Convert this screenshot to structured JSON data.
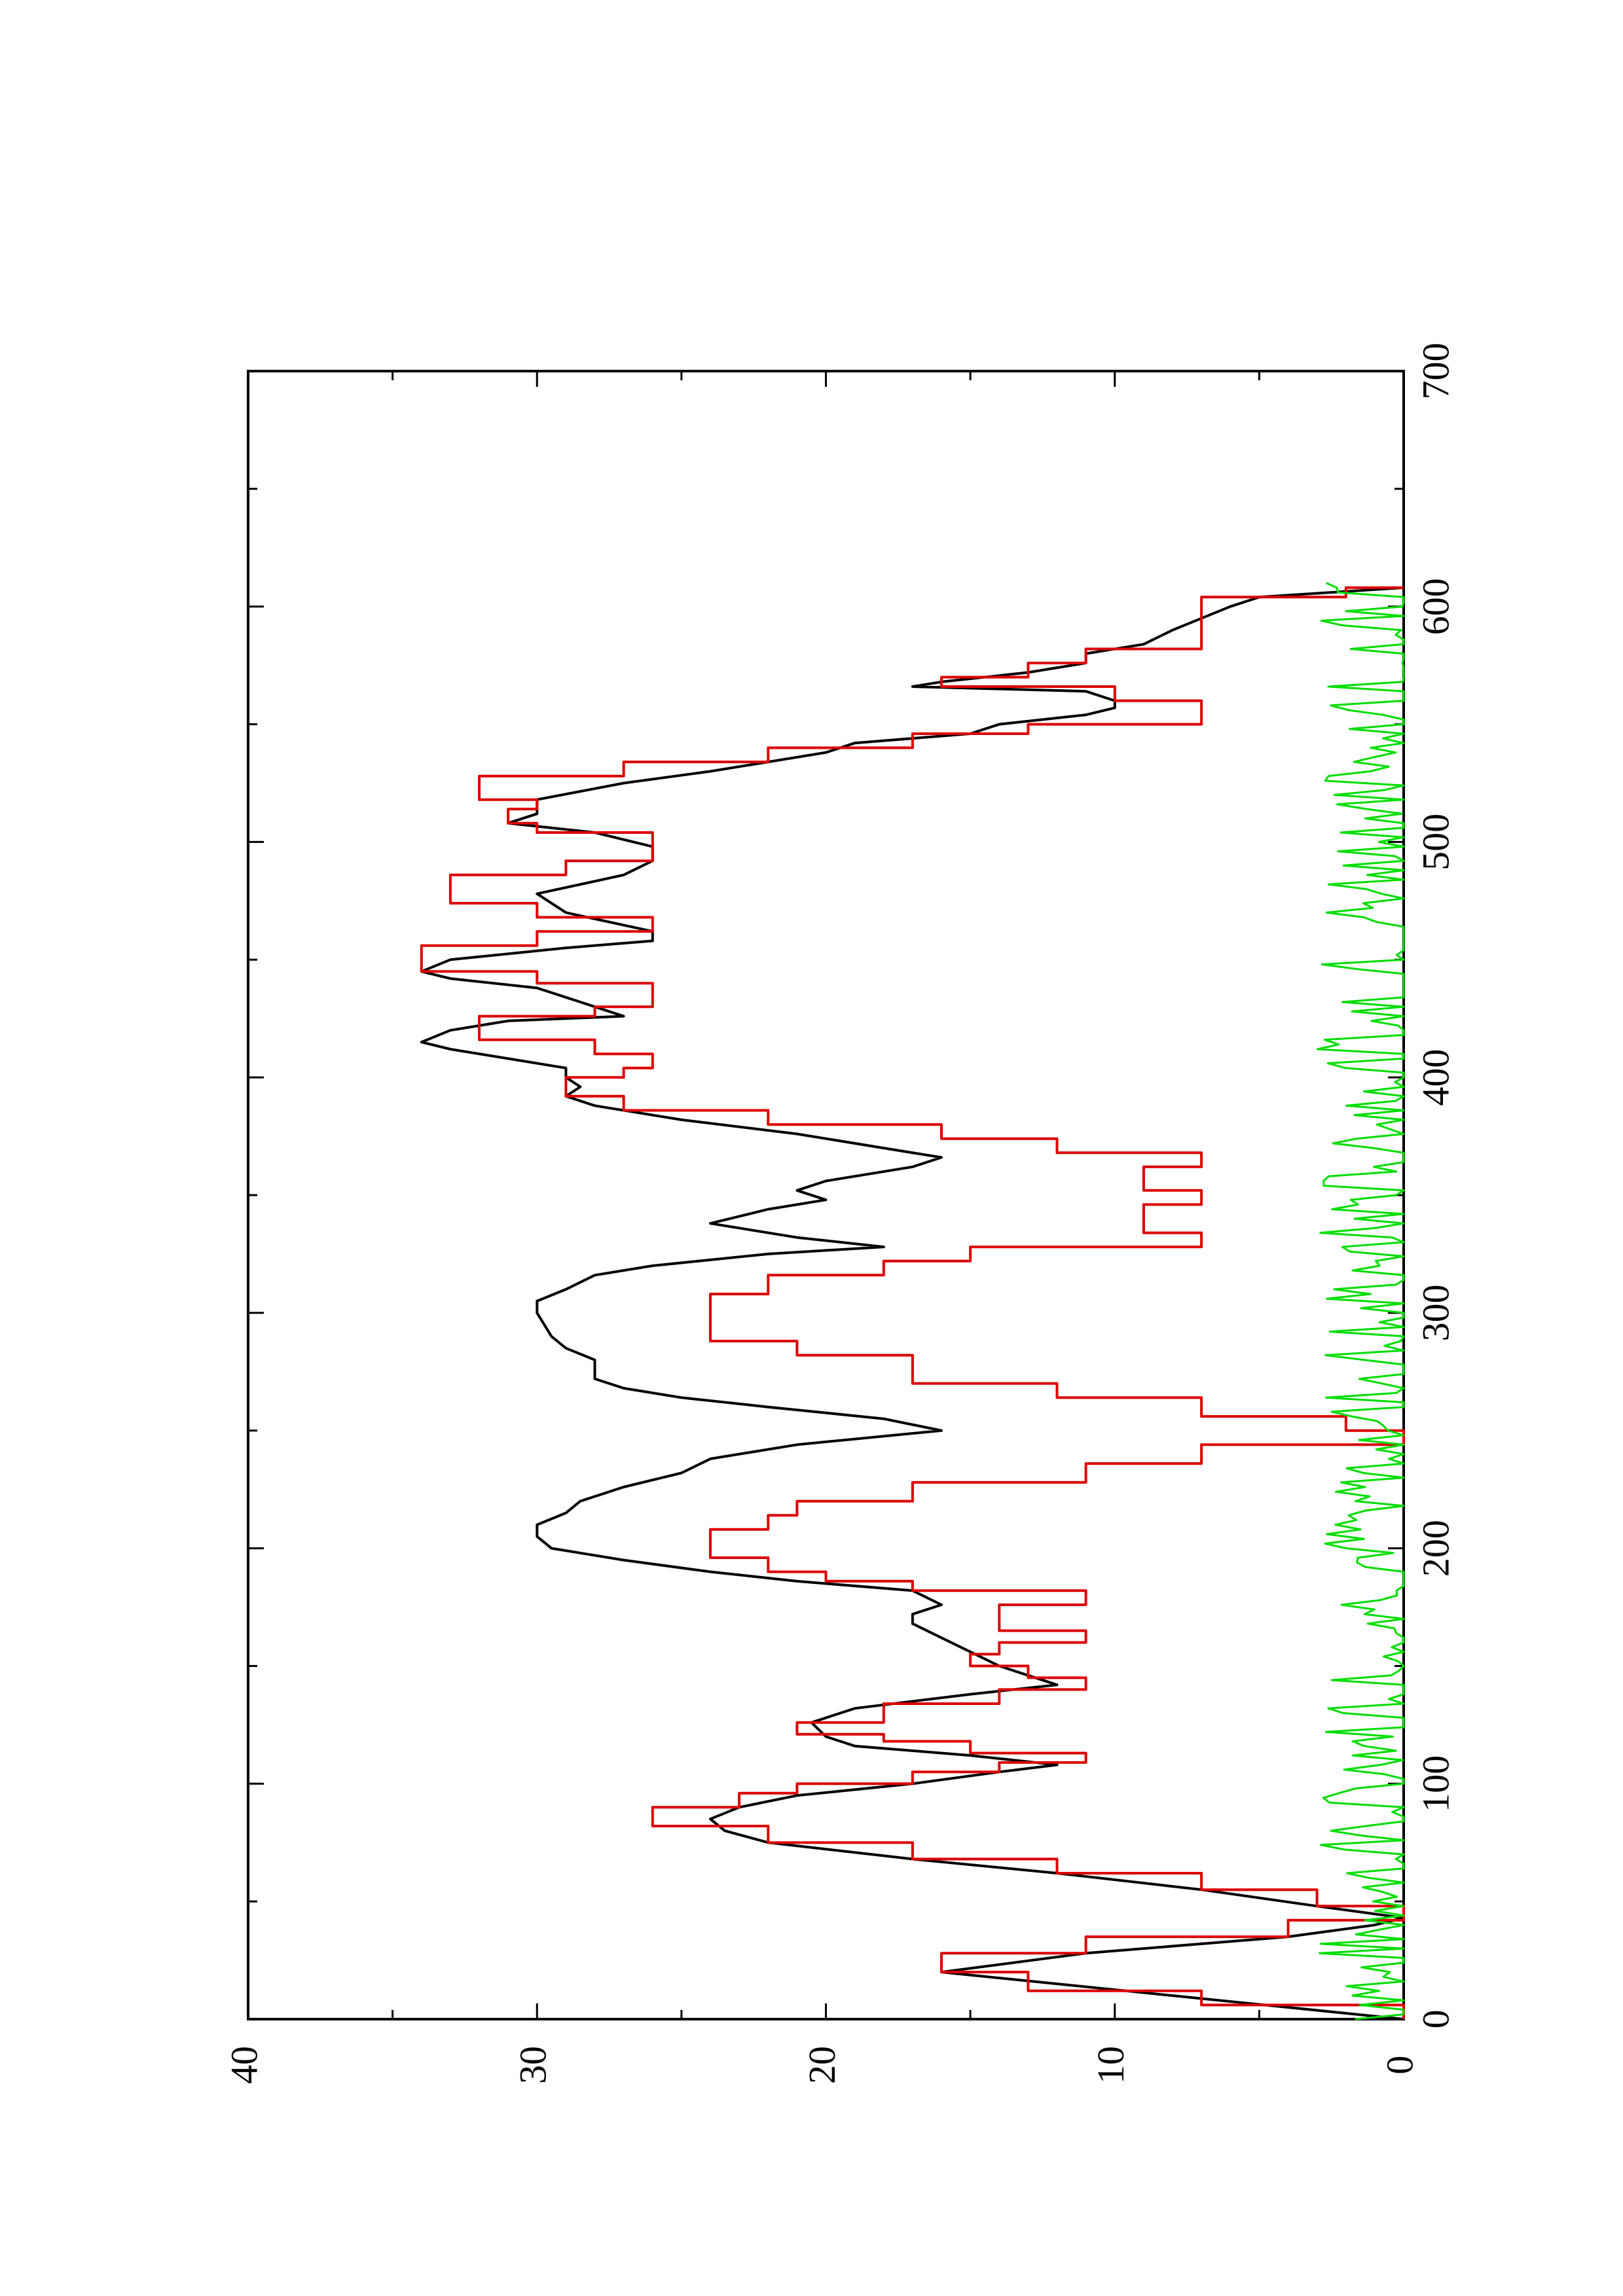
{
  "chart_data": {
    "type": "line",
    "orientation": "rotated-90-clockwise",
    "title": "",
    "xlabel": "",
    "ylabel": "",
    "xlim": [
      0,
      700
    ],
    "ylim": [
      0,
      40
    ],
    "x_major_ticks": [
      0,
      100,
      200,
      300,
      400,
      500,
      600,
      700
    ],
    "x_minor_ticks": [
      50,
      150,
      250,
      350,
      450,
      550,
      650
    ],
    "y_major_ticks": [
      0,
      10,
      20,
      30,
      40
    ],
    "y_minor_ticks": [
      5,
      15,
      25,
      35
    ],
    "x_tick_labels": [
      "0",
      "100",
      "200",
      "300",
      "400",
      "500",
      "600",
      "700"
    ],
    "y_tick_labels": [
      "0",
      "10",
      "20",
      "30",
      "40"
    ],
    "grid": false,
    "legend": "none",
    "series": [
      {
        "color": "#000000",
        "style": "line",
        "points": [
          [
            0,
            0
          ],
          [
            20,
            16
          ],
          [
            28,
            11
          ],
          [
            35,
            4
          ],
          [
            40,
            1
          ],
          [
            43,
            0
          ],
          [
            48,
            3
          ],
          [
            55,
            7
          ],
          [
            62,
            12
          ],
          [
            68,
            17
          ],
          [
            75,
            22
          ],
          [
            80,
            23.5
          ],
          [
            85,
            24
          ],
          [
            90,
            23
          ],
          [
            95,
            21
          ],
          [
            100,
            17
          ],
          [
            105,
            14
          ],
          [
            108,
            12
          ],
          [
            112,
            15
          ],
          [
            116,
            19
          ],
          [
            120,
            20
          ],
          [
            126,
            20.5
          ],
          [
            132,
            19
          ],
          [
            138,
            15
          ],
          [
            142,
            12
          ],
          [
            146,
            13
          ],
          [
            150,
            14
          ],
          [
            156,
            15
          ],
          [
            162,
            16
          ],
          [
            168,
            17
          ],
          [
            172,
            17
          ],
          [
            176,
            16
          ],
          [
            182,
            17
          ],
          [
            186,
            21
          ],
          [
            190,
            24
          ],
          [
            195,
            27
          ],
          [
            200,
            29.5
          ],
          [
            205,
            30
          ],
          [
            210,
            30
          ],
          [
            215,
            29
          ],
          [
            220,
            28.5
          ],
          [
            226,
            27
          ],
          [
            232,
            25
          ],
          [
            238,
            24
          ],
          [
            244,
            21
          ],
          [
            250,
            16
          ],
          [
            255,
            18
          ],
          [
            260,
            22
          ],
          [
            264,
            25
          ],
          [
            268,
            27
          ],
          [
            272,
            28
          ],
          [
            280,
            28
          ],
          [
            285,
            29
          ],
          [
            290,
            29.5
          ],
          [
            300,
            30
          ],
          [
            305,
            30
          ],
          [
            310,
            29
          ],
          [
            316,
            28
          ],
          [
            320,
            26
          ],
          [
            325,
            22
          ],
          [
            328,
            18
          ],
          [
            332,
            21
          ],
          [
            338,
            24
          ],
          [
            344,
            22
          ],
          [
            348,
            20
          ],
          [
            352,
            21
          ],
          [
            356,
            20
          ],
          [
            362,
            17
          ],
          [
            366,
            16
          ],
          [
            370,
            18
          ],
          [
            376,
            21
          ],
          [
            382,
            25
          ],
          [
            388,
            28
          ],
          [
            392,
            29
          ],
          [
            396,
            28.5
          ],
          [
            400,
            29
          ],
          [
            404,
            29
          ],
          [
            408,
            31
          ],
          [
            412,
            33
          ],
          [
            415,
            34
          ],
          [
            420,
            33
          ],
          [
            424,
            31
          ],
          [
            426,
            27
          ],
          [
            430,
            28
          ],
          [
            434,
            29
          ],
          [
            438,
            30
          ],
          [
            442,
            33
          ],
          [
            445,
            34
          ],
          [
            450,
            33
          ],
          [
            455,
            29
          ],
          [
            458,
            26
          ],
          [
            462,
            26
          ],
          [
            470,
            29
          ],
          [
            478,
            30
          ],
          [
            486,
            27
          ],
          [
            492,
            26
          ],
          [
            498,
            26
          ],
          [
            504,
            28
          ],
          [
            508,
            31
          ],
          [
            512,
            30
          ],
          [
            518,
            30
          ],
          [
            525,
            27
          ],
          [
            530,
            24
          ],
          [
            534,
            22
          ],
          [
            538,
            20
          ],
          [
            542,
            19
          ],
          [
            546,
            15
          ],
          [
            550,
            14
          ],
          [
            554,
            11
          ],
          [
            557,
            10
          ],
          [
            560,
            10
          ],
          [
            564,
            11
          ],
          [
            566,
            17
          ],
          [
            568,
            16
          ],
          [
            572,
            13
          ],
          [
            576,
            11
          ],
          [
            580,
            11
          ],
          [
            584,
            9
          ],
          [
            590,
            8
          ],
          [
            595,
            7
          ],
          [
            600,
            6
          ],
          [
            604,
            5
          ],
          [
            608,
            0
          ]
        ]
      },
      {
        "color": "#dd0000",
        "style": "step-line",
        "points": [
          [
            0,
            0
          ],
          [
            6,
            7
          ],
          [
            12,
            13
          ],
          [
            20,
            16
          ],
          [
            28,
            11
          ],
          [
            35,
            4
          ],
          [
            42,
            0
          ],
          [
            48,
            3
          ],
          [
            55,
            7
          ],
          [
            62,
            12
          ],
          [
            68,
            17
          ],
          [
            75,
            22
          ],
          [
            82,
            26
          ],
          [
            90,
            23
          ],
          [
            96,
            21
          ],
          [
            100,
            17
          ],
          [
            105,
            14
          ],
          [
            109,
            11
          ],
          [
            113,
            15
          ],
          [
            118,
            18
          ],
          [
            121,
            21
          ],
          [
            126,
            18
          ],
          [
            134,
            14
          ],
          [
            140,
            11
          ],
          [
            145,
            13
          ],
          [
            150,
            15
          ],
          [
            155,
            14
          ],
          [
            160,
            11
          ],
          [
            165,
            14
          ],
          [
            170,
            14
          ],
          [
            176,
            11
          ],
          [
            182,
            17
          ],
          [
            186,
            20
          ],
          [
            190,
            22
          ],
          [
            196,
            24
          ],
          [
            202,
            24
          ],
          [
            208,
            22
          ],
          [
            214,
            21
          ],
          [
            220,
            17
          ],
          [
            228,
            11
          ],
          [
            236,
            7
          ],
          [
            244,
            0
          ],
          [
            250,
            2
          ],
          [
            256,
            7
          ],
          [
            264,
            12
          ],
          [
            270,
            17
          ],
          [
            276,
            17
          ],
          [
            282,
            21
          ],
          [
            288,
            24
          ],
          [
            294,
            24
          ],
          [
            302,
            24
          ],
          [
            308,
            22
          ],
          [
            316,
            18
          ],
          [
            322,
            15
          ],
          [
            328,
            7
          ],
          [
            334,
            9
          ],
          [
            340,
            9
          ],
          [
            346,
            7
          ],
          [
            352,
            9
          ],
          [
            356,
            9
          ],
          [
            362,
            7
          ],
          [
            368,
            12
          ],
          [
            374,
            16
          ],
          [
            380,
            22
          ],
          [
            386,
            27
          ],
          [
            392,
            29
          ],
          [
            400,
            27
          ],
          [
            404,
            26
          ],
          [
            410,
            28
          ],
          [
            416,
            32
          ],
          [
            422,
            32
          ],
          [
            426,
            28
          ],
          [
            430,
            26
          ],
          [
            436,
            26
          ],
          [
            440,
            30
          ],
          [
            445,
            34
          ],
          [
            450,
            34
          ],
          [
            456,
            30
          ],
          [
            462,
            26
          ],
          [
            468,
            30
          ],
          [
            474,
            33
          ],
          [
            480,
            33
          ],
          [
            486,
            29
          ],
          [
            492,
            26
          ],
          [
            498,
            26
          ],
          [
            504,
            30
          ],
          [
            508,
            31
          ],
          [
            514,
            30
          ],
          [
            518,
            32
          ],
          [
            522,
            32
          ],
          [
            528,
            27
          ],
          [
            534,
            22
          ],
          [
            540,
            17
          ],
          [
            546,
            13
          ],
          [
            550,
            7
          ],
          [
            556,
            7
          ],
          [
            560,
            10
          ],
          [
            566,
            16
          ],
          [
            570,
            13
          ],
          [
            576,
            11
          ],
          [
            582,
            7
          ],
          [
            590,
            7
          ],
          [
            596,
            7
          ],
          [
            604,
            2
          ],
          [
            608,
            0
          ]
        ]
      },
      {
        "color": "#00dd00",
        "style": "noisy-line",
        "baseline": 0,
        "max": 3
      }
    ]
  }
}
